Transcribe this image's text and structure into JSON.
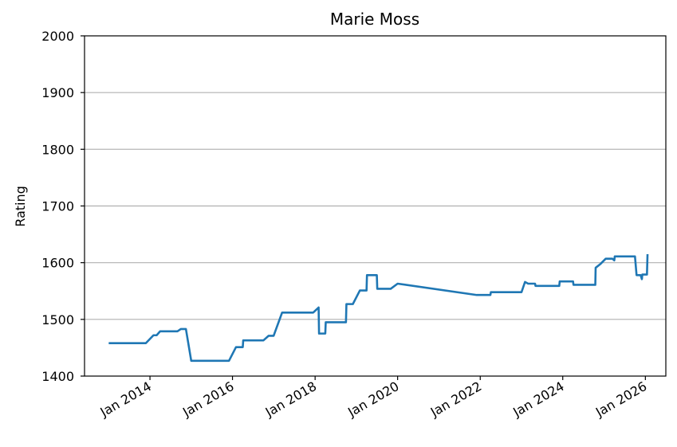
{
  "chart_data": {
    "type": "line",
    "title": "Marie Moss",
    "xlabel": "",
    "ylabel": "Rating",
    "ylim": [
      1400,
      2000
    ],
    "xlim": [
      "2012-06-01",
      "2026-07-01"
    ],
    "grid": "horizontal",
    "y_ticks": [
      1400,
      1500,
      1600,
      1700,
      1800,
      1900,
      2000
    ],
    "x_ticks": [
      {
        "date": "2014-01-01",
        "label": "Jan 2014"
      },
      {
        "date": "2016-01-01",
        "label": "Jan 2016"
      },
      {
        "date": "2018-01-01",
        "label": "Jan 2018"
      },
      {
        "date": "2020-01-01",
        "label": "Jan 2020"
      },
      {
        "date": "2022-01-01",
        "label": "Jan 2022"
      },
      {
        "date": "2024-01-01",
        "label": "Jan 2024"
      },
      {
        "date": "2026-01-01",
        "label": "Jan 2026"
      }
    ],
    "series": [
      {
        "color": "#1f77b4",
        "points": [
          [
            "2013-01-01",
            1458
          ],
          [
            "2013-11-25",
            1458
          ],
          [
            "2014-02-01",
            1472
          ],
          [
            "2014-03-01",
            1472
          ],
          [
            "2014-04-01",
            1479
          ],
          [
            "2014-09-01",
            1479
          ],
          [
            "2014-10-01",
            1483
          ],
          [
            "2014-11-15",
            1483
          ],
          [
            "2015-01-01",
            1427
          ],
          [
            "2015-12-01",
            1427
          ],
          [
            "2016-02-01",
            1451
          ],
          [
            "2016-04-01",
            1451
          ],
          [
            "2016-04-05",
            1463
          ],
          [
            "2016-10-01",
            1463
          ],
          [
            "2016-11-15",
            1471
          ],
          [
            "2016-12-30",
            1471
          ],
          [
            "2017-03-15",
            1512
          ],
          [
            "2017-12-15",
            1512
          ],
          [
            "2018-02-01",
            1521
          ],
          [
            "2018-02-05",
            1475
          ],
          [
            "2018-04-01",
            1475
          ],
          [
            "2018-04-05",
            1495
          ],
          [
            "2018-10-01",
            1495
          ],
          [
            "2018-10-05",
            1527
          ],
          [
            "2018-12-01",
            1527
          ],
          [
            "2019-02-01",
            1551
          ],
          [
            "2019-04-01",
            1551
          ],
          [
            "2019-04-05",
            1578
          ],
          [
            "2019-07-01",
            1578
          ],
          [
            "2019-07-05",
            1554
          ],
          [
            "2019-11-01",
            1554
          ],
          [
            "2020-01-01",
            1563
          ],
          [
            "2021-12-01",
            1543
          ],
          [
            "2022-04-01",
            1543
          ],
          [
            "2022-04-05",
            1548
          ],
          [
            "2023-01-01",
            1548
          ],
          [
            "2023-02-01",
            1566
          ],
          [
            "2023-03-01",
            1563
          ],
          [
            "2023-05-01",
            1563
          ],
          [
            "2023-05-05",
            1559
          ],
          [
            "2023-12-01",
            1559
          ],
          [
            "2023-12-05",
            1567
          ],
          [
            "2024-04-01",
            1567
          ],
          [
            "2024-04-05",
            1561
          ],
          [
            "2024-10-15",
            1561
          ],
          [
            "2024-10-18",
            1591
          ],
          [
            "2024-12-01",
            1598
          ],
          [
            "2025-01-15",
            1607
          ],
          [
            "2025-03-15",
            1607
          ],
          [
            "2025-04-01",
            1604
          ],
          [
            "2025-04-05",
            1611
          ],
          [
            "2025-10-01",
            1611
          ],
          [
            "2025-10-15",
            1578
          ],
          [
            "2025-11-20",
            1578
          ],
          [
            "2025-12-01",
            1571
          ],
          [
            "2025-12-05",
            1579
          ],
          [
            "2026-01-15",
            1579
          ],
          [
            "2026-01-20",
            1615
          ]
        ]
      }
    ]
  }
}
